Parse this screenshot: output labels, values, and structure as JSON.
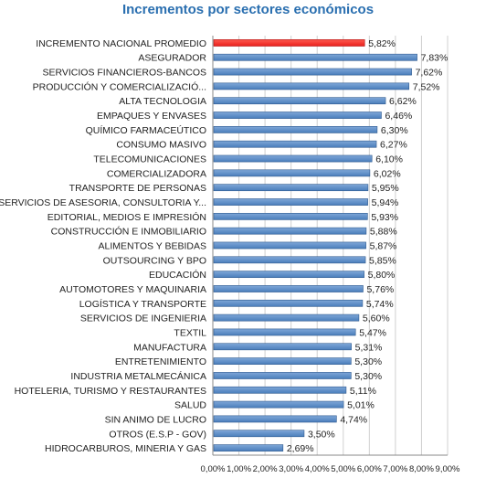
{
  "chart_data": {
    "type": "bar",
    "orientation": "horizontal",
    "title": "Incrementos por sectores económicos",
    "categories": [
      "INCREMENTO NACIONAL PROMEDIO",
      "ASEGURADOR",
      "SERVICIOS FINANCIEROS-BANCOS",
      "PRODUCCIÓN Y COMERCIALIZACIÓ...",
      "ALTA TECNOLOGIA",
      "EMPAQUES Y ENVASES",
      "QUÍMICO FARMACEÚTICO",
      "CONSUMO MASIVO",
      "TELECOMUNICACIONES",
      "COMERCIALIZADORA",
      "TRANSPORTE DE PERSONAS",
      "SERVICIOS DE ASESORIA, CONSULTORIA Y...",
      "EDITORIAL, MEDIOS E IMPRESIÓN",
      "CONSTRUCCIÓN E INMOBILIARIO",
      "ALIMENTOS Y BEBIDAS",
      "OUTSOURCING Y BPO",
      "EDUCACIÓN",
      "AUTOMOTORES Y MAQUINARIA",
      "LOGÍSTICA Y TRANSPORTE",
      "SERVICIOS DE INGENIERIA",
      "TEXTIL",
      "MANUFACTURA",
      "ENTRETENIMIENTO",
      "INDUSTRIA METALMECÁNICA",
      "HOTELERIA, TURISMO Y RESTAURANTES",
      "SALUD",
      "SIN ANIMO DE LUCRO",
      "OTROS (E.S.P - GOV)",
      "HIDROCARBUROS, MINERIA Y GAS"
    ],
    "values": [
      5.82,
      7.83,
      7.62,
      7.52,
      6.62,
      6.46,
      6.3,
      6.27,
      6.1,
      6.02,
      5.95,
      5.94,
      5.93,
      5.88,
      5.87,
      5.85,
      5.8,
      5.76,
      5.74,
      5.6,
      5.47,
      5.31,
      5.3,
      5.3,
      5.11,
      5.01,
      4.74,
      3.5,
      2.69
    ],
    "value_labels": [
      "5,82%",
      "7,83%",
      "7,62%",
      "7,52%",
      "6,62%",
      "6,46%",
      "6,30%",
      "6,27%",
      "6,10%",
      "6,02%",
      "5,95%",
      "5,94%",
      "5,93%",
      "5,88%",
      "5,87%",
      "5,85%",
      "5,80%",
      "5,76%",
      "5,74%",
      "5,60%",
      "5,47%",
      "5,31%",
      "5,30%",
      "5,30%",
      "5,11%",
      "5,01%",
      "4,74%",
      "3,50%",
      "2,69%"
    ],
    "xlim": [
      0,
      9
    ],
    "x_ticks": [
      0,
      1,
      2,
      3,
      4,
      5,
      6,
      7,
      8,
      9
    ],
    "x_tick_labels": [
      "0,00%",
      "1,00%",
      "2,00%",
      "3,00%",
      "4,00%",
      "5,00%",
      "6,00%",
      "7,00%",
      "8,00%",
      "9,00%"
    ],
    "grid": "vertical",
    "highlight_index": 0,
    "colors": {
      "bar": "#4a7ebb",
      "bar_edge": "#2f5a8f",
      "highlight": "#e8201c",
      "highlight_edge": "#b01010",
      "grid": "#d0d0d0",
      "title": "#2a6fb0"
    }
  }
}
